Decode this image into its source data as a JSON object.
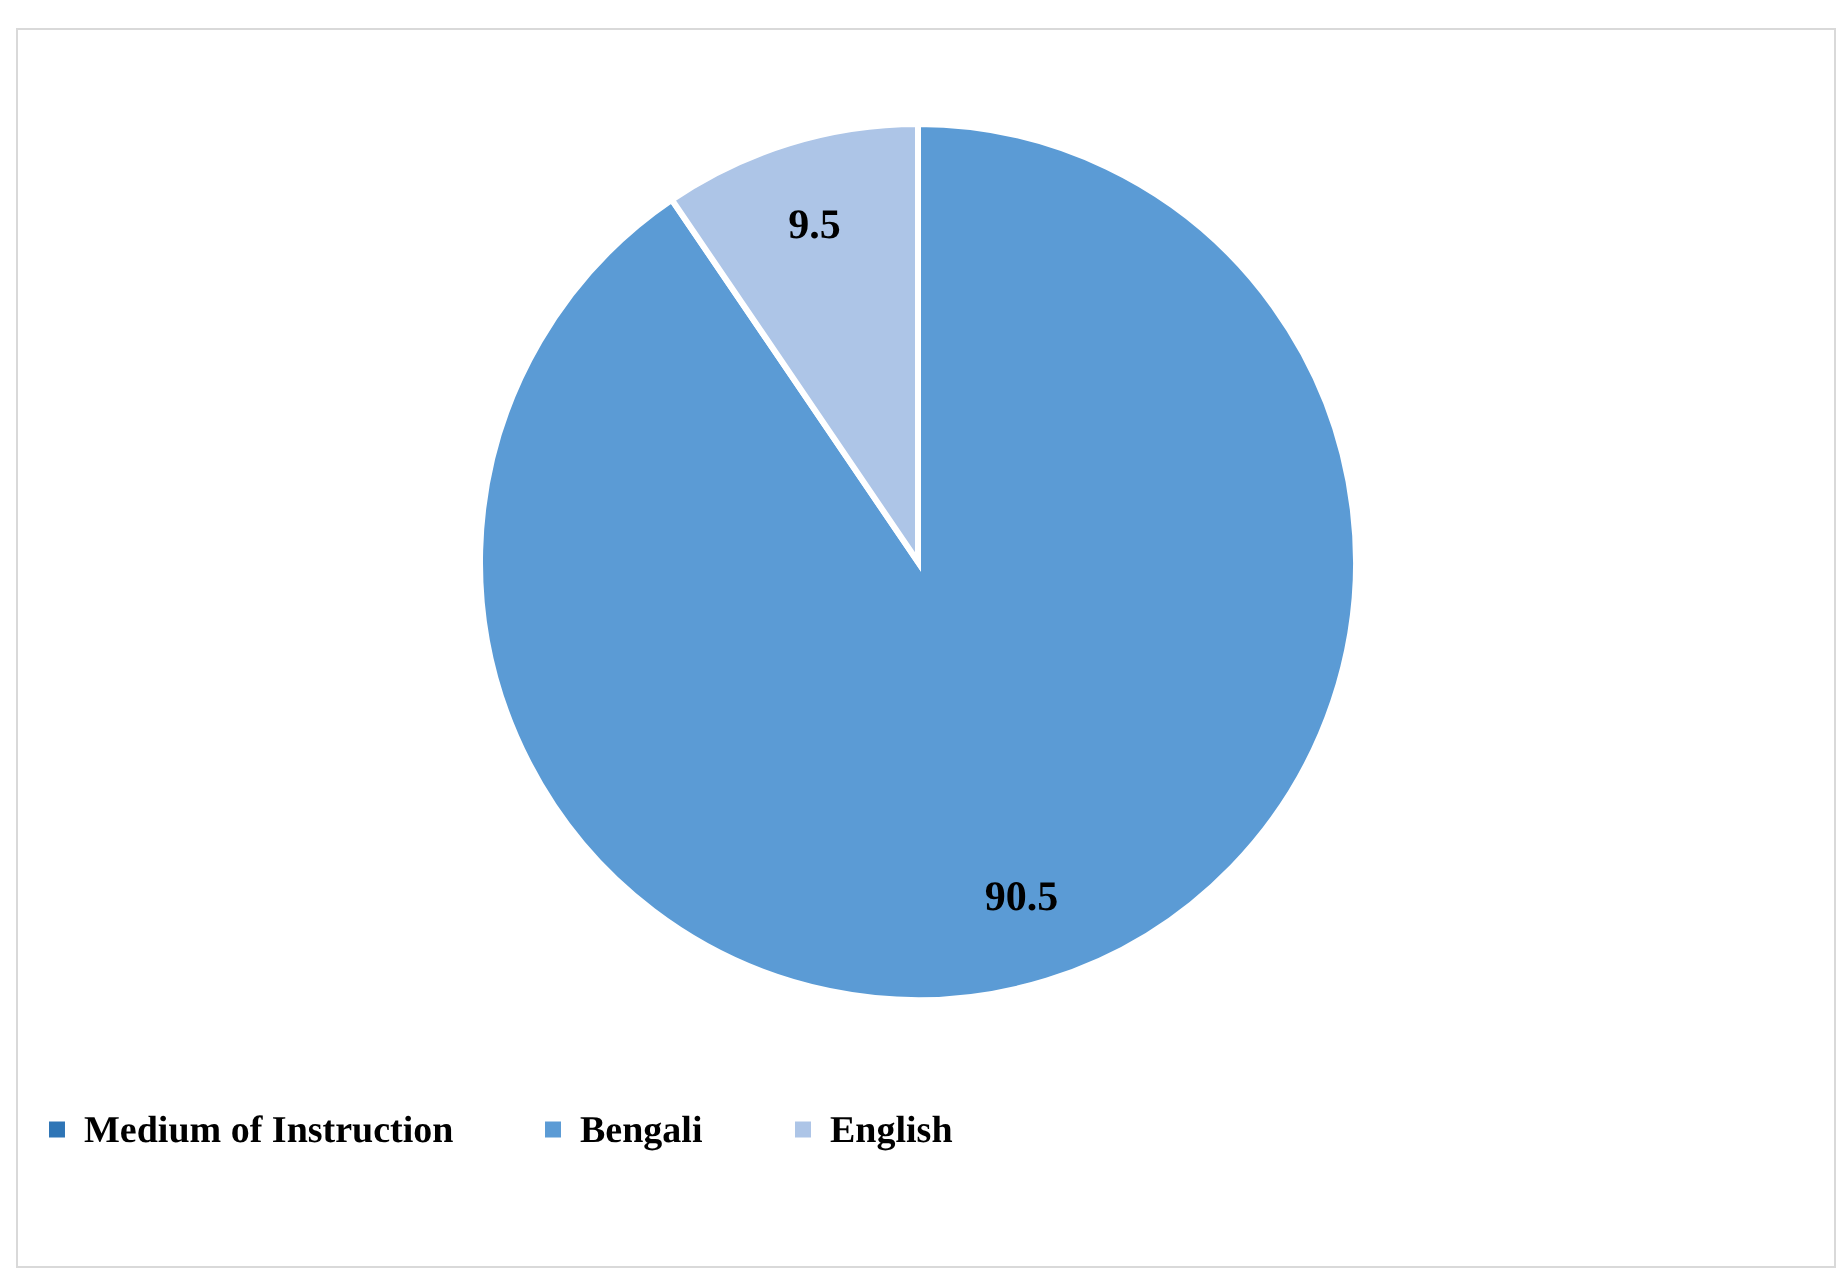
{
  "chart_data": {
    "type": "pie",
    "categories": [
      "Medium of Instruction",
      "Bengali",
      "English"
    ],
    "values": [
      0,
      90.5,
      9.5
    ],
    "colors": [
      "#2e75b6",
      "#5b9bd5",
      "#adc5e7"
    ],
    "value_labels": [
      null,
      "90.5",
      "9.5"
    ],
    "legend": "bottom"
  }
}
